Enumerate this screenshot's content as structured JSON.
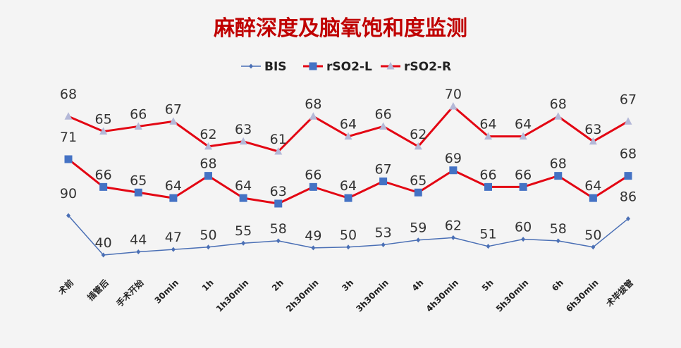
{
  "chart_data": {
    "type": "line",
    "title": "麻醉深度及脑氧饱和度监测",
    "xlabel": "",
    "ylabel": "",
    "legend_position": "top",
    "grid": false,
    "categories": [
      "术前",
      "插管后",
      "手术开始",
      "30min",
      "1h",
      "1h30min",
      "2h",
      "2h30min",
      "3h",
      "3h30min",
      "4h",
      "4h30min",
      "5h",
      "5h30min",
      "6h",
      "6h30min",
      "术毕拔管"
    ],
    "series": [
      {
        "name": "BIS",
        "color": "#4a6fb5",
        "marker": "diamond",
        "values": [
          90,
          40,
          44,
          47,
          50,
          55,
          58,
          49,
          50,
          53,
          59,
          62,
          51,
          60,
          58,
          50,
          86
        ]
      },
      {
        "name": "rSO2-L",
        "color": "#e30613",
        "marker": "square",
        "marker_color": "#4472c4",
        "values": [
          71,
          66,
          65,
          64,
          68,
          64,
          63,
          66,
          64,
          67,
          65,
          69,
          66,
          66,
          68,
          64,
          68
        ]
      },
      {
        "name": "rSO2-R",
        "color": "#e30613",
        "marker": "triangle",
        "marker_color": "#b4b8d8",
        "values": [
          68,
          65,
          66,
          67,
          62,
          63,
          61,
          68,
          64,
          66,
          62,
          70,
          64,
          64,
          68,
          63,
          67
        ]
      }
    ]
  }
}
